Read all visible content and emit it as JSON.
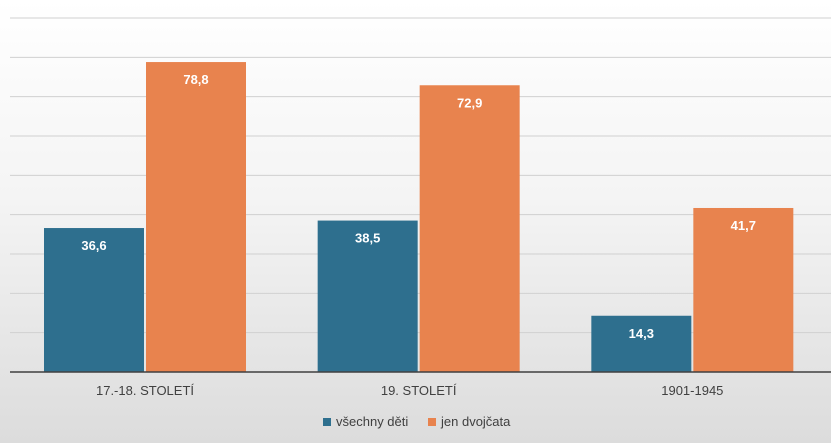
{
  "chart_data": {
    "type": "bar",
    "title": "",
    "xlabel": "",
    "ylabel": "",
    "categories": [
      "17.-18. STOLETÍ",
      "19. STOLETÍ",
      "1901-1945"
    ],
    "series": [
      {
        "name": "všechny děti",
        "values": [
          36.6,
          38.5,
          14.3
        ],
        "labels": [
          "36,6",
          "38,5",
          "14,3"
        ],
        "color": "#2e6f8e"
      },
      {
        "name": "jen dvojčata",
        "values": [
          78.8,
          72.9,
          41.7
        ],
        "labels": [
          "78,8",
          "72,9",
          "41,7"
        ],
        "color": "#e8834e"
      }
    ],
    "ylim": [
      0,
      90
    ],
    "y_gridlines": [
      10,
      20,
      30,
      40,
      50,
      60,
      70,
      80,
      90
    ],
    "y_axis_labels_visible": false,
    "grid": true,
    "legend": "bottom-center"
  },
  "colors": {
    "series_1": "#2e6f8e",
    "series_2": "#e8834e",
    "gridline": "#d0d0d0",
    "axis": "#404040"
  }
}
